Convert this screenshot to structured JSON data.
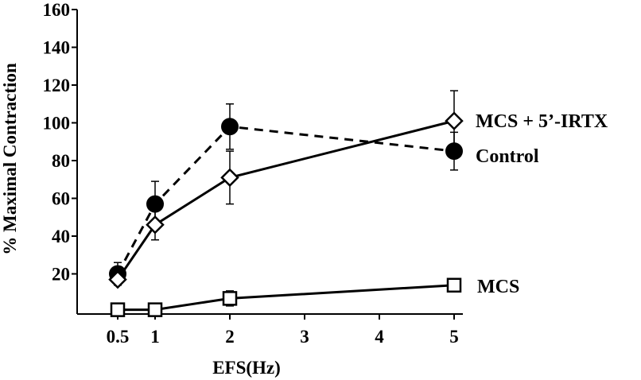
{
  "chart_data": {
    "type": "line",
    "title": "",
    "xlabel": "EFS(Hz)",
    "ylabel": "% Maximal Contraction",
    "xlim": [
      0.05,
      5.2
    ],
    "ylim": [
      -5,
      160
    ],
    "x_ticks": [
      0.5,
      1,
      2,
      3,
      4,
      5
    ],
    "x_tick_labels": [
      "0.5",
      "1",
      "2",
      "3",
      "4",
      "5"
    ],
    "y_ticks": [
      20,
      40,
      60,
      80,
      100,
      120,
      140,
      160
    ],
    "y_tick_labels": [
      "20",
      "40",
      "60",
      "80",
      "100",
      "120",
      "140",
      "160"
    ],
    "grid": false,
    "legend": "direct labels at right end of each series",
    "series": [
      {
        "name": "Control",
        "marker": "filled-circle",
        "line": "dashed",
        "x": [
          0.5,
          1,
          2,
          5
        ],
        "y": [
          20,
          57,
          98,
          85
        ],
        "error": [
          6,
          12,
          12,
          10
        ]
      },
      {
        "name": "MCS + 5’-IRTX",
        "marker": "open-diamond",
        "line": "solid",
        "x": [
          0.5,
          1,
          2,
          5
        ],
        "y": [
          17,
          46,
          71,
          101
        ],
        "error": [
          0,
          8,
          14,
          16
        ]
      },
      {
        "name": "MCS",
        "marker": "open-square",
        "line": "solid",
        "x": [
          0.5,
          1,
          2,
          5
        ],
        "y": [
          1,
          1,
          7,
          14
        ],
        "error": [
          0,
          0,
          4,
          0
        ]
      }
    ]
  }
}
